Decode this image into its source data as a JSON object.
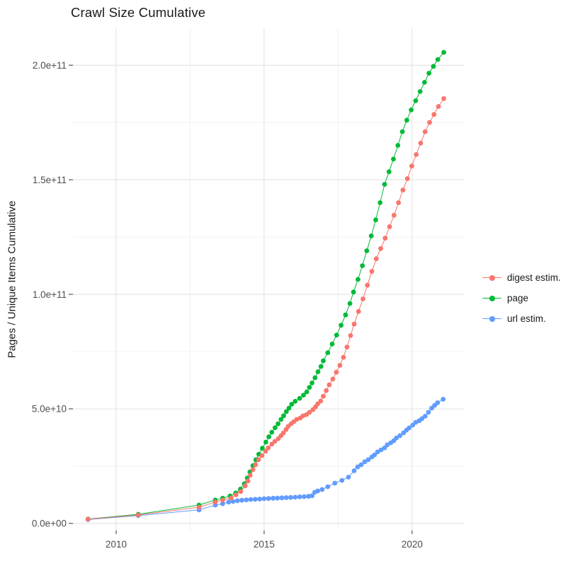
{
  "title": "Crawl Size Cumulative",
  "chart_data": {
    "type": "scatter",
    "title": "Crawl Size Cumulative",
    "xlabel": "",
    "ylabel": "Pages / Unique Items Cumulative",
    "value_unit": "billions (1e9) of pages / unique items",
    "x_unit": "year (decimal)",
    "grid": true,
    "legend_position": "right",
    "xlim": [
      2008.54,
      2021.75
    ],
    "ylim_billions": [
      -3.1,
      216.1
    ],
    "x_ticks": [
      2010,
      2015,
      2020
    ],
    "x_minor_ticks": [
      2012.5,
      2017.5
    ],
    "y_ticks": [
      {
        "value": 0,
        "label": "0.0e+00"
      },
      {
        "value": 50,
        "label": "5.0e+10"
      },
      {
        "value": 100,
        "label": "1.0e+11"
      },
      {
        "value": 150,
        "label": "1.5e+11"
      },
      {
        "value": 200,
        "label": "2.0e+11"
      }
    ],
    "y_minor_ticks": [
      25,
      75,
      125,
      175
    ],
    "z_order": [
      1,
      2,
      0
    ],
    "series": [
      {
        "name": "digest estim.",
        "color": "#F8766D",
        "points": [
          [
            2009.05,
            1.85
          ],
          [
            2010.75,
            3.7
          ],
          [
            2012.8,
            7.1
          ],
          [
            2013.35,
            9.3
          ],
          [
            2013.6,
            10.2
          ],
          [
            2013.88,
            11.1
          ],
          [
            2014.05,
            12.5
          ],
          [
            2014.21,
            13.9
          ],
          [
            2014.36,
            16.4
          ],
          [
            2014.45,
            18.5
          ],
          [
            2014.53,
            21.0
          ],
          [
            2014.62,
            23.5
          ],
          [
            2014.71,
            25.6
          ],
          [
            2014.81,
            27.8
          ],
          [
            2014.93,
            29.6
          ],
          [
            2015.05,
            31.5
          ],
          [
            2015.14,
            33.0
          ],
          [
            2015.26,
            34.6
          ],
          [
            2015.36,
            35.8
          ],
          [
            2015.48,
            37.0
          ],
          [
            2015.57,
            38.3
          ],
          [
            2015.65,
            39.5
          ],
          [
            2015.74,
            41.0
          ],
          [
            2015.81,
            42.3
          ],
          [
            2015.91,
            43.5
          ],
          [
            2016.0,
            44.4
          ],
          [
            2016.1,
            45.4
          ],
          [
            2016.22,
            46.0
          ],
          [
            2016.31,
            46.9
          ],
          [
            2016.43,
            47.5
          ],
          [
            2016.53,
            48.5
          ],
          [
            2016.65,
            49.7
          ],
          [
            2016.74,
            50.9
          ],
          [
            2016.81,
            52.2
          ],
          [
            2016.91,
            53.4
          ],
          [
            2017.0,
            55.5
          ],
          [
            2017.1,
            58.0
          ],
          [
            2017.2,
            60.5
          ],
          [
            2017.32,
            63.0
          ],
          [
            2017.44,
            66.0
          ],
          [
            2017.56,
            69.0
          ],
          [
            2017.68,
            72.5
          ],
          [
            2017.8,
            77.0
          ],
          [
            2017.92,
            82.0
          ],
          [
            2018.04,
            87.0
          ],
          [
            2018.19,
            92.5
          ],
          [
            2018.34,
            98.0
          ],
          [
            2018.49,
            104.0
          ],
          [
            2018.64,
            110.0
          ],
          [
            2018.79,
            115.5
          ],
          [
            2018.94,
            120.0
          ],
          [
            2019.09,
            124.5
          ],
          [
            2019.24,
            129.5
          ],
          [
            2019.39,
            134.5
          ],
          [
            2019.54,
            140.0
          ],
          [
            2019.69,
            145.5
          ],
          [
            2019.84,
            150.5
          ],
          [
            2019.99,
            156.0
          ],
          [
            2020.14,
            161.0
          ],
          [
            2020.29,
            166.0
          ],
          [
            2020.44,
            171.0
          ],
          [
            2020.59,
            175.0
          ],
          [
            2020.74,
            178.5
          ],
          [
            2020.89,
            182.0
          ],
          [
            2021.07,
            185.4
          ]
        ]
      },
      {
        "name": "page",
        "color": "#00BA38",
        "points": [
          [
            2009.05,
            1.9
          ],
          [
            2010.75,
            4.0
          ],
          [
            2012.8,
            8.0
          ],
          [
            2013.35,
            10.2
          ],
          [
            2013.6,
            11.0
          ],
          [
            2013.85,
            12.0
          ],
          [
            2014.04,
            13.3
          ],
          [
            2014.2,
            15.0
          ],
          [
            2014.33,
            17.3
          ],
          [
            2014.43,
            19.8
          ],
          [
            2014.52,
            22.5
          ],
          [
            2014.62,
            25.2
          ],
          [
            2014.72,
            27.8
          ],
          [
            2014.82,
            30.2
          ],
          [
            2014.94,
            32.8
          ],
          [
            2015.06,
            35.5
          ],
          [
            2015.16,
            37.8
          ],
          [
            2015.26,
            39.8
          ],
          [
            2015.37,
            41.8
          ],
          [
            2015.47,
            43.5
          ],
          [
            2015.57,
            45.4
          ],
          [
            2015.66,
            47.0
          ],
          [
            2015.75,
            48.8
          ],
          [
            2015.84,
            50.3
          ],
          [
            2015.93,
            52.0
          ],
          [
            2016.05,
            53.3
          ],
          [
            2016.2,
            54.6
          ],
          [
            2016.33,
            56.0
          ],
          [
            2016.44,
            57.4
          ],
          [
            2016.53,
            59.4
          ],
          [
            2016.62,
            61.3
          ],
          [
            2016.72,
            63.6
          ],
          [
            2016.82,
            66.2
          ],
          [
            2016.92,
            68.5
          ],
          [
            2017.0,
            71.0
          ],
          [
            2017.15,
            74.5
          ],
          [
            2017.3,
            78.3
          ],
          [
            2017.45,
            82.2
          ],
          [
            2017.6,
            86.5
          ],
          [
            2017.75,
            91.0
          ],
          [
            2017.9,
            96.0
          ],
          [
            2018.02,
            101.0
          ],
          [
            2018.17,
            106.5
          ],
          [
            2018.32,
            112.5
          ],
          [
            2018.47,
            119.0
          ],
          [
            2018.62,
            125.5
          ],
          [
            2018.77,
            132.5
          ],
          [
            2018.92,
            140.0
          ],
          [
            2019.07,
            148.0
          ],
          [
            2019.22,
            153.5
          ],
          [
            2019.37,
            159.0
          ],
          [
            2019.52,
            165.0
          ],
          [
            2019.67,
            171.0
          ],
          [
            2019.82,
            176.0
          ],
          [
            2019.97,
            180.5
          ],
          [
            2020.12,
            184.5
          ],
          [
            2020.27,
            188.5
          ],
          [
            2020.42,
            192.5
          ],
          [
            2020.57,
            196.5
          ],
          [
            2020.72,
            199.5
          ],
          [
            2020.87,
            202.5
          ],
          [
            2021.07,
            205.6
          ]
        ]
      },
      {
        "name": "url estim.",
        "color": "#619CFF",
        "points": [
          [
            2009.05,
            1.7
          ],
          [
            2010.75,
            3.4
          ],
          [
            2012.8,
            5.9
          ],
          [
            2013.35,
            8.0
          ],
          [
            2013.6,
            8.6
          ],
          [
            2013.8,
            9.3
          ],
          [
            2013.95,
            9.6
          ],
          [
            2014.1,
            9.9
          ],
          [
            2014.25,
            10.1
          ],
          [
            2014.4,
            10.3
          ],
          [
            2014.55,
            10.45
          ],
          [
            2014.7,
            10.55
          ],
          [
            2014.85,
            10.65
          ],
          [
            2015.0,
            10.8
          ],
          [
            2015.15,
            10.9
          ],
          [
            2015.3,
            11.0
          ],
          [
            2015.45,
            11.05
          ],
          [
            2015.6,
            11.15
          ],
          [
            2015.75,
            11.25
          ],
          [
            2015.9,
            11.35
          ],
          [
            2016.05,
            11.45
          ],
          [
            2016.2,
            11.6
          ],
          [
            2016.35,
            11.7
          ],
          [
            2016.5,
            11.8
          ],
          [
            2016.62,
            12.1
          ],
          [
            2016.71,
            13.6
          ],
          [
            2016.81,
            14.2
          ],
          [
            2016.96,
            14.8
          ],
          [
            2017.15,
            16.0
          ],
          [
            2017.39,
            17.6
          ],
          [
            2017.63,
            18.8
          ],
          [
            2017.85,
            20.2
          ],
          [
            2018.04,
            23.0
          ],
          [
            2018.16,
            24.7
          ],
          [
            2018.28,
            25.6
          ],
          [
            2018.4,
            26.9
          ],
          [
            2018.52,
            27.8
          ],
          [
            2018.64,
            29.0
          ],
          [
            2018.73,
            29.9
          ],
          [
            2018.83,
            31.2
          ],
          [
            2018.95,
            32.1
          ],
          [
            2019.07,
            33.0
          ],
          [
            2019.16,
            34.3
          ],
          [
            2019.28,
            35.2
          ],
          [
            2019.38,
            36.1
          ],
          [
            2019.47,
            37.3
          ],
          [
            2019.59,
            38.3
          ],
          [
            2019.71,
            39.5
          ],
          [
            2019.81,
            40.7
          ],
          [
            2019.9,
            41.7
          ],
          [
            2020.02,
            42.9
          ],
          [
            2020.12,
            44.1
          ],
          [
            2020.24,
            44.8
          ],
          [
            2020.33,
            45.7
          ],
          [
            2020.44,
            46.8
          ],
          [
            2020.55,
            48.5
          ],
          [
            2020.66,
            50.3
          ],
          [
            2020.76,
            51.5
          ],
          [
            2020.86,
            52.7
          ],
          [
            2021.05,
            54.2
          ]
        ]
      }
    ]
  }
}
